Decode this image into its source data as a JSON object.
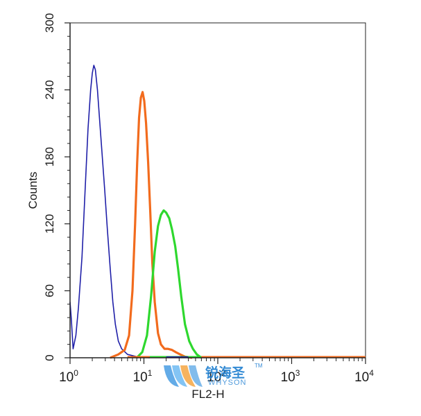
{
  "chart_data": {
    "type": "histogram",
    "xlabel": "FL2-H",
    "ylabel": "Counts",
    "xscale": "log",
    "xlim": [
      1,
      10000
    ],
    "ylim": [
      0,
      300
    ],
    "x_ticks": [
      {
        "base": "10",
        "exp": "0",
        "value": 1
      },
      {
        "base": "10",
        "exp": "1",
        "value": 10
      },
      {
        "base": "10",
        "exp": "2",
        "value": 100
      },
      {
        "base": "10",
        "exp": "3",
        "value": 1000
      },
      {
        "base": "10",
        "exp": "4",
        "value": 10000
      }
    ],
    "y_ticks": [
      0,
      60,
      120,
      180,
      240,
      300
    ],
    "grid": false,
    "series": [
      {
        "color": "#1f1fa8",
        "points": [
          [
            1.0,
            50
          ],
          [
            1.04,
            35
          ],
          [
            1.1,
            8
          ],
          [
            1.2,
            20
          ],
          [
            1.3,
            45
          ],
          [
            1.45,
            90
          ],
          [
            1.6,
            150
          ],
          [
            1.75,
            205
          ],
          [
            1.9,
            240
          ],
          [
            2.0,
            255
          ],
          [
            2.1,
            262
          ],
          [
            2.2,
            258
          ],
          [
            2.35,
            240
          ],
          [
            2.5,
            215
          ],
          [
            2.7,
            185
          ],
          [
            2.95,
            150
          ],
          [
            3.2,
            115
          ],
          [
            3.5,
            80
          ],
          [
            3.8,
            50
          ],
          [
            4.1,
            30
          ],
          [
            4.5,
            15
          ],
          [
            5.0,
            8
          ],
          [
            6.0,
            3
          ],
          [
            8.0,
            1
          ],
          [
            12,
            0
          ]
        ]
      },
      {
        "color": "#f26b1d",
        "points": [
          [
            3.5,
            0
          ],
          [
            4.5,
            3
          ],
          [
            5.5,
            7
          ],
          [
            6.3,
            20
          ],
          [
            7.0,
            60
          ],
          [
            7.6,
            120
          ],
          [
            8.1,
            175
          ],
          [
            8.6,
            215
          ],
          [
            9.1,
            233
          ],
          [
            9.6,
            238
          ],
          [
            10.1,
            230
          ],
          [
            10.7,
            210
          ],
          [
            11.4,
            175
          ],
          [
            12.2,
            130
          ],
          [
            13.0,
            85
          ],
          [
            14.0,
            50
          ],
          [
            15.5,
            22
          ],
          [
            17,
            12
          ],
          [
            19,
            8
          ],
          [
            21,
            8
          ],
          [
            24,
            7
          ],
          [
            27,
            5
          ],
          [
            31,
            3
          ],
          [
            36,
            1
          ],
          [
            45,
            0
          ]
        ]
      },
      {
        "color": "#2ed82e",
        "points": [
          [
            8.0,
            0
          ],
          [
            9.5,
            5
          ],
          [
            11,
            20
          ],
          [
            12.5,
            55
          ],
          [
            14,
            95
          ],
          [
            15.5,
            118
          ],
          [
            17,
            128
          ],
          [
            18.5,
            132
          ],
          [
            20,
            130
          ],
          [
            22,
            125
          ],
          [
            24,
            115
          ],
          [
            26.5,
            100
          ],
          [
            29,
            80
          ],
          [
            32,
            55
          ],
          [
            36,
            30
          ],
          [
            41,
            15
          ],
          [
            46,
            8
          ],
          [
            52,
            3
          ],
          [
            60,
            0
          ]
        ]
      }
    ],
    "watermark": {
      "cn": "锐海圣",
      "en": "WHYSON",
      "tm": "TM"
    }
  }
}
